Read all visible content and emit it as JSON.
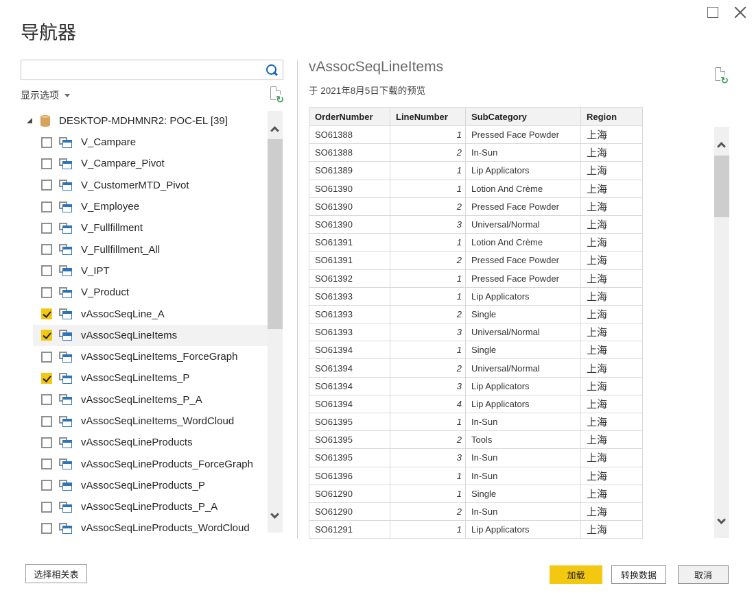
{
  "window": {
    "title": "导航器"
  },
  "left_panel": {
    "search": {
      "value": "",
      "placeholder": ""
    },
    "display_options_label": "显示选项",
    "tree": {
      "root_label": "DESKTOP-MDHMNR2: POC-EL [39]",
      "items": [
        {
          "label": "V_Campare",
          "checked": false,
          "selected": false
        },
        {
          "label": "V_Campare_Pivot",
          "checked": false,
          "selected": false
        },
        {
          "label": "V_CustomerMTD_Pivot",
          "checked": false,
          "selected": false
        },
        {
          "label": "V_Employee",
          "checked": false,
          "selected": false
        },
        {
          "label": "V_Fullfillment",
          "checked": false,
          "selected": false
        },
        {
          "label": "V_Fullfillment_All",
          "checked": false,
          "selected": false
        },
        {
          "label": "V_IPT",
          "checked": false,
          "selected": false
        },
        {
          "label": "V_Product",
          "checked": false,
          "selected": false
        },
        {
          "label": "vAssocSeqLine_A",
          "checked": true,
          "selected": false
        },
        {
          "label": "vAssocSeqLineItems",
          "checked": true,
          "selected": true
        },
        {
          "label": "vAssocSeqLineItems_ForceGraph",
          "checked": false,
          "selected": false
        },
        {
          "label": "vAssocSeqLineItems_P",
          "checked": true,
          "selected": false
        },
        {
          "label": "vAssocSeqLineItems_P_A",
          "checked": false,
          "selected": false
        },
        {
          "label": "vAssocSeqLineItems_WordCloud",
          "checked": false,
          "selected": false
        },
        {
          "label": "vAssocSeqLineProducts",
          "checked": false,
          "selected": false
        },
        {
          "label": "vAssocSeqLineProducts_ForceGraph",
          "checked": false,
          "selected": false
        },
        {
          "label": "vAssocSeqLineProducts_P",
          "checked": false,
          "selected": false
        },
        {
          "label": "vAssocSeqLineProducts_P_A",
          "checked": false,
          "selected": false
        },
        {
          "label": "vAssocSeqLineProducts_WordCloud",
          "checked": false,
          "selected": false
        }
      ]
    }
  },
  "preview": {
    "title": "vAssocSeqLineItems",
    "subtitle": "于 2021年8月5日下载的预览",
    "table": {
      "columns": [
        "OrderNumber",
        "LineNumber",
        "SubCategory",
        "Region"
      ],
      "rows": [
        [
          "SO61388",
          "1",
          "Pressed Face Powder",
          "上海"
        ],
        [
          "SO61388",
          "2",
          "In-Sun",
          "上海"
        ],
        [
          "SO61389",
          "1",
          "Lip Applicators",
          "上海"
        ],
        [
          "SO61390",
          "1",
          "Lotion And Crème",
          "上海"
        ],
        [
          "SO61390",
          "2",
          "Pressed Face Powder",
          "上海"
        ],
        [
          "SO61390",
          "3",
          "Universal/Normal",
          "上海"
        ],
        [
          "SO61391",
          "1",
          "Lotion And Crème",
          "上海"
        ],
        [
          "SO61391",
          "2",
          "Pressed Face Powder",
          "上海"
        ],
        [
          "SO61392",
          "1",
          "Pressed Face Powder",
          "上海"
        ],
        [
          "SO61393",
          "1",
          "Lip Applicators",
          "上海"
        ],
        [
          "SO61393",
          "2",
          "Single",
          "上海"
        ],
        [
          "SO61393",
          "3",
          "Universal/Normal",
          "上海"
        ],
        [
          "SO61394",
          "1",
          "Single",
          "上海"
        ],
        [
          "SO61394",
          "2",
          "Universal/Normal",
          "上海"
        ],
        [
          "SO61394",
          "3",
          "Lip Applicators",
          "上海"
        ],
        [
          "SO61394",
          "4",
          "Lip Applicators",
          "上海"
        ],
        [
          "SO61395",
          "1",
          "In-Sun",
          "上海"
        ],
        [
          "SO61395",
          "2",
          "Tools",
          "上海"
        ],
        [
          "SO61395",
          "3",
          "In-Sun",
          "上海"
        ],
        [
          "SO61396",
          "1",
          "In-Sun",
          "上海"
        ],
        [
          "SO61290",
          "1",
          "Single",
          "上海"
        ],
        [
          "SO61290",
          "2",
          "In-Sun",
          "上海"
        ],
        [
          "SO61291",
          "1",
          "Lip Applicators",
          "上海"
        ]
      ]
    }
  },
  "footer": {
    "select_related_label": "选择相关表",
    "load_label": "加载",
    "transform_label": "转换数据",
    "cancel_label": "取消"
  },
  "icons": {
    "search": "magnifier",
    "display_options_caret": "chevron-down",
    "refresh_preview": "document-with-refresh-arrows",
    "database": "database-cylinder",
    "table": "overlapping-windows",
    "maximize": "square-outline",
    "close": "x-cross"
  },
  "colors": {
    "accent_yellow": "#F2C811",
    "table_icon_blue": "#2E75B5",
    "search_icon_blue": "#1465BC",
    "refresh_green": "#3F9C5B",
    "database_tan": "#D9A35C",
    "selected_row_bg": "#F2F2F2",
    "table_border": "#D9D9D9",
    "header_bg": "#F2F2F2"
  }
}
